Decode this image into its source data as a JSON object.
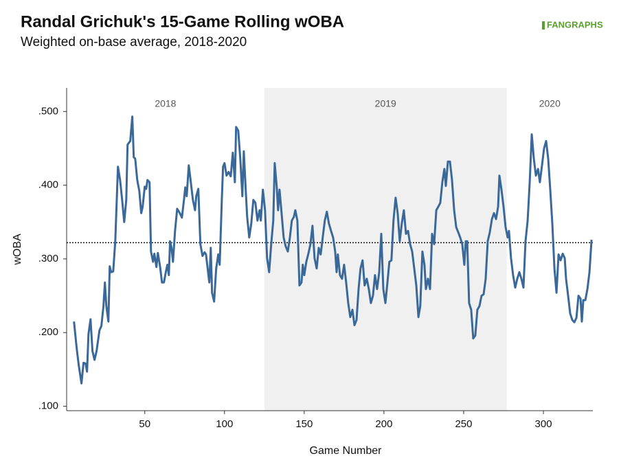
{
  "chart_data": {
    "type": "line",
    "title": "Randal Grichuk's 15-Game Rolling wOBA",
    "subtitle": "Weighted on-base average, 2018-2020",
    "source": "FANGRAPHS",
    "x_label": "Game Number",
    "y_label": "wOBA",
    "xlim": [
      1,
      331
    ],
    "ylim": [
      0.094,
      0.532
    ],
    "xticks": [
      50,
      100,
      150,
      200,
      250,
      300
    ],
    "yticks": [
      {
        "value": 0.1,
        "label": ".100"
      },
      {
        "value": 0.2,
        "label": ".200"
      },
      {
        "value": 0.3,
        "label": ".300"
      },
      {
        "value": 0.4,
        "label": ".400"
      },
      {
        "value": 0.5,
        "label": ".500"
      }
    ],
    "reference_line": 0.322,
    "regions": [
      {
        "label": "2018",
        "range": [
          1,
          125
        ],
        "shaded": false
      },
      {
        "label": "2019",
        "range": [
          125,
          277
        ],
        "shaded": true
      },
      {
        "label": "2020",
        "range": [
          277,
          331
        ],
        "shaded": false
      }
    ],
    "x": [
      5.6,
      7.3,
      8.6,
      10.3,
      11.6,
      12.9,
      13.8,
      14.7,
      16,
      17.2,
      18.5,
      19.8,
      21.6,
      22.8,
      24.1,
      25,
      25.9,
      27.2,
      28,
      28.9,
      30.2,
      31.5,
      33.2,
      34.5,
      35.8,
      37.1,
      38.4,
      39.2,
      40.9,
      42.2,
      43.1,
      44,
      45.3,
      46.6,
      47.8,
      48.7,
      50,
      50.9,
      51.7,
      53,
      53.9,
      55.2,
      56,
      57.3,
      58.2,
      59.5,
      60.8,
      62,
      63.4,
      64.2,
      65.1,
      65.9,
      66.8,
      67.7,
      69,
      70.3,
      72,
      73.3,
      74.6,
      75.4,
      76.3,
      77.6,
      78.9,
      80.2,
      81.5,
      82.3,
      83.6,
      84.9,
      86.2,
      87.5,
      88.4,
      89.7,
      90.5,
      91.4,
      92.2,
      93.5,
      94.8,
      96.1,
      97,
      98.3,
      99.1,
      100,
      101.3,
      102.6,
      103.9,
      105.2,
      106.5,
      107.3,
      108.6,
      109.9,
      111.2,
      112.1,
      113.4,
      114.2,
      115.5,
      116.8,
      118.1,
      119.4,
      120.7,
      122,
      122.8,
      124.1,
      125.4,
      126.7,
      128,
      129.3,
      130.6,
      131.5,
      132.8,
      133.6,
      134.5,
      135.8,
      137.1,
      138.4,
      139.7,
      141,
      142.2,
      143.5,
      144.4,
      145.7,
      147,
      148.3,
      149.1,
      150,
      151.3,
      152.6,
      153.9,
      155.2,
      156.5,
      157.8,
      159.1,
      160.3,
      161.6,
      162.9,
      164.2,
      165.5,
      166.8,
      168.1,
      169.4,
      170.3,
      171.1,
      172.4,
      173.7,
      175,
      176.3,
      177.6,
      178.9,
      180.2,
      181.5,
      182.8,
      184.1,
      185.3,
      186.6,
      187.9,
      189.2,
      190.5,
      191.8,
      193.1,
      194.4,
      195.7,
      197,
      198.3,
      199.6,
      200.9,
      202.2,
      203.4,
      204.7,
      206,
      207.3,
      208.6,
      209.9,
      211.2,
      212.5,
      213.8,
      215.1,
      216.4,
      217.7,
      219,
      220.3,
      221.6,
      222.8,
      224.1,
      225.4,
      226.3,
      227.6,
      228.9,
      230.2,
      231.5,
      232.8,
      234.1,
      235.3,
      236.6,
      237.9,
      238.8,
      240.1,
      241.4,
      242.7,
      244,
      245.3,
      246.6,
      247.8,
      249.1,
      250.4,
      251.3,
      252.2,
      253.4,
      254.7,
      256,
      257.3,
      258.6,
      259.9,
      261.2,
      262.5,
      263.8,
      265.1,
      266.4,
      267.7,
      269,
      270.3,
      271.6,
      272.4,
      273.7,
      275,
      276.3,
      277.6,
      278.4,
      279.7,
      281,
      282.3,
      283.6,
      284.9,
      286.2,
      287.5,
      288.8,
      290.1,
      291.4,
      292.7,
      294,
      295.3,
      296.6,
      297.8,
      299.1,
      300.4,
      301.7,
      303,
      304.3,
      305.6,
      306.9,
      308.2,
      309.5,
      310.8,
      312.1,
      313.4,
      314.2,
      315.5,
      316.8,
      318.1,
      319.4,
      320.7,
      322,
      323.3,
      324.1,
      325,
      326.3,
      327.6,
      328.9,
      330.2
    ],
    "series": [
      {
        "name": "wOBA",
        "color": "#3a6898",
        "values": [
          0.215,
          0.179,
          0.156,
          0.131,
          0.159,
          0.158,
          0.147,
          0.198,
          0.218,
          0.175,
          0.163,
          0.175,
          0.203,
          0.209,
          0.236,
          0.268,
          0.236,
          0.215,
          0.29,
          0.282,
          0.283,
          0.324,
          0.425,
          0.407,
          0.38,
          0.35,
          0.38,
          0.455,
          0.46,
          0.493,
          0.438,
          0.436,
          0.407,
          0.392,
          0.362,
          0.371,
          0.398,
          0.395,
          0.407,
          0.404,
          0.31,
          0.296,
          0.307,
          0.289,
          0.308,
          0.291,
          0.268,
          0.268,
          0.284,
          0.292,
          0.278,
          0.324,
          0.315,
          0.296,
          0.338,
          0.368,
          0.362,
          0.356,
          0.38,
          0.397,
          0.385,
          0.427,
          0.404,
          0.38,
          0.366,
          0.385,
          0.395,
          0.32,
          0.304,
          0.309,
          0.306,
          0.282,
          0.268,
          0.315,
          0.254,
          0.242,
          0.287,
          0.306,
          0.292,
          0.38,
          0.425,
          0.43,
          0.413,
          0.418,
          0.412,
          0.444,
          0.404,
          0.479,
          0.474,
          0.436,
          0.385,
          0.446,
          0.39,
          0.357,
          0.329,
          0.348,
          0.38,
          0.376,
          0.352,
          0.366,
          0.352,
          0.394,
          0.366,
          0.301,
          0.282,
          0.32,
          0.352,
          0.43,
          0.397,
          0.366,
          0.394,
          0.362,
          0.329,
          0.317,
          0.31,
          0.329,
          0.352,
          0.357,
          0.366,
          0.352,
          0.264,
          0.268,
          0.292,
          0.278,
          0.296,
          0.307,
          0.32,
          0.345,
          0.301,
          0.287,
          0.315,
          0.306,
          0.329,
          0.352,
          0.364,
          0.348,
          0.338,
          0.329,
          0.31,
          0.282,
          0.306,
          0.278,
          0.273,
          0.292,
          0.268,
          0.24,
          0.221,
          0.231,
          0.21,
          0.217,
          0.259,
          0.287,
          0.298,
          0.264,
          0.273,
          0.259,
          0.24,
          0.25,
          0.278,
          0.259,
          0.282,
          0.334,
          0.259,
          0.24,
          0.268,
          0.296,
          0.298,
          0.352,
          0.383,
          0.362,
          0.324,
          0.348,
          0.366,
          0.334,
          0.338,
          0.32,
          0.31,
          0.287,
          0.264,
          0.221,
          0.236,
          0.31,
          0.292,
          0.259,
          0.273,
          0.259,
          0.334,
          0.32,
          0.366,
          0.371,
          0.376,
          0.404,
          0.422,
          0.399,
          0.432,
          0.432,
          0.407,
          0.366,
          0.343,
          0.336,
          0.329,
          0.32,
          0.292,
          0.324,
          0.324,
          0.24,
          0.231,
          0.192,
          0.196,
          0.231,
          0.236,
          0.25,
          0.252,
          0.273,
          0.324,
          0.336,
          0.354,
          0.362,
          0.354,
          0.371,
          0.413,
          0.394,
          0.371,
          0.343,
          0.329,
          0.338,
          0.301,
          0.278,
          0.261,
          0.273,
          0.282,
          0.273,
          0.261,
          0.324,
          0.352,
          0.404,
          0.469,
          0.436,
          0.413,
          0.422,
          0.404,
          0.427,
          0.45,
          0.46,
          0.436,
          0.394,
          0.348,
          0.287,
          0.254,
          0.306,
          0.298,
          0.307,
          0.301,
          0.273,
          0.25,
          0.226,
          0.217,
          0.214,
          0.22,
          0.25,
          0.246,
          0.215,
          0.244,
          0.244,
          0.259,
          0.282,
          0.326
        ]
      }
    ]
  }
}
